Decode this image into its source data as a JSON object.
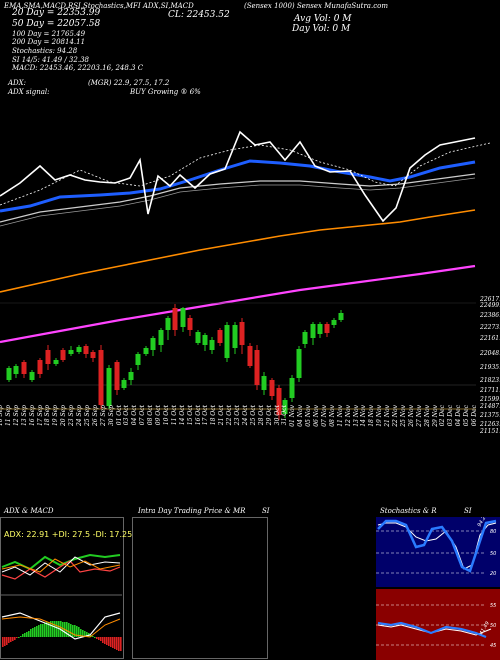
{
  "header": {
    "ticker_line": "(Sensex 1000) Sensex MunafaSutra.com",
    "ltp": "CL: 22453.52",
    "ema_line": "20 Day = 22353.99",
    "day_vol": "Day Vol: 0  M",
    "avg_vol": "Avg Vol: 0  M",
    "sma50": "50 Day = 22057.58",
    "sma100": "100 Day = 21765.49",
    "sma200": "200 Day = 20814.11",
    "stoch_line": "Stochastics: 94.28",
    "si_line": "SI 14/5: 41.49 / 32.38",
    "macd_line": "MACD: 22453.46, 22203.16, 248.3 C",
    "adx_line": "ADX:",
    "adx_values": "(MGR) 22.9, 27.5, 17.2",
    "adx_signal_label": "ADX signal:",
    "adx_signal": "BUY Growing ® 6%",
    "indicators_top": "EMA,SMA,MACD,RSI,Stochastics,MFI ADX,SI,MACD"
  },
  "price_axis": [
    "22617.55",
    "22499.7",
    "22386.9",
    "22273.93",
    "22161.0",
    "22048.11",
    "21935.56",
    "21823.49",
    "21711.54",
    "21599.59",
    "21487.64",
    "21375.69",
    "21263.74",
    "21151.79"
  ],
  "dates": [
    "10 Sep",
    "11 Sep",
    "12 Sep",
    "13 Sep",
    "16 Sep",
    "17 Sep",
    "18 Sep",
    "19 Sep",
    "20 Sep",
    "23 Sep",
    "24 Sep",
    "25 Sep",
    "26 Sep",
    "27 Sep",
    "30 Sep",
    "01 Oct",
    "03 Oct",
    "04 Oct",
    "07 Oct",
    "08 Oct",
    "09 Oct",
    "10 Oct",
    "11 Oct",
    "14 Oct",
    "15 Oct",
    "16 Oct",
    "17 Oct",
    "18 Oct",
    "21 Oct",
    "22 Oct",
    "23 Oct",
    "24 Oct",
    "25 Oct",
    "28 Oct",
    "29 Oct",
    "30 Oct",
    "31 Oct",
    "01 Nov",
    "04 Nov",
    "05 Nov",
    "06 Nov",
    "07 Nov",
    "08 Nov",
    "11 Nov",
    "12 Nov",
    "13 Nov",
    "14 Nov",
    "18 Nov",
    "19 Nov",
    "21 Nov",
    "22 Nov",
    "25 Nov",
    "26 Nov",
    "27 Nov",
    "28 Nov",
    "29 Nov",
    "02 Dec",
    "03 Dec",
    "04 Dec",
    "05 Dec",
    "06 Dec"
  ],
  "panels": {
    "adx_title": "ADX  & MACD",
    "adx_readout": "ADX: 22.91  +DI: 27.5  -DI: 17.25",
    "intraday_title": "Intra Day Trading Price  & MR",
    "si_title": "SI",
    "stoch_title": "Stochastics & R",
    "stoch_si": "SI",
    "stoch_ticks": [
      "80",
      "50",
      "20"
    ],
    "si_ticks": [
      "55",
      "50",
      "45"
    ],
    "stoch_value": "94.28",
    "si_value": "41.49"
  },
  "colors": {
    "bg": "#000000",
    "up": "#22cc22",
    "down": "#dd2222",
    "ema20": "#1e5eff",
    "sma50": "#ffffff",
    "sma100": "#cccccc",
    "sma200": "#ff8c00",
    "line_long": "#ff44ff",
    "price_line": "#ffffff"
  }
}
